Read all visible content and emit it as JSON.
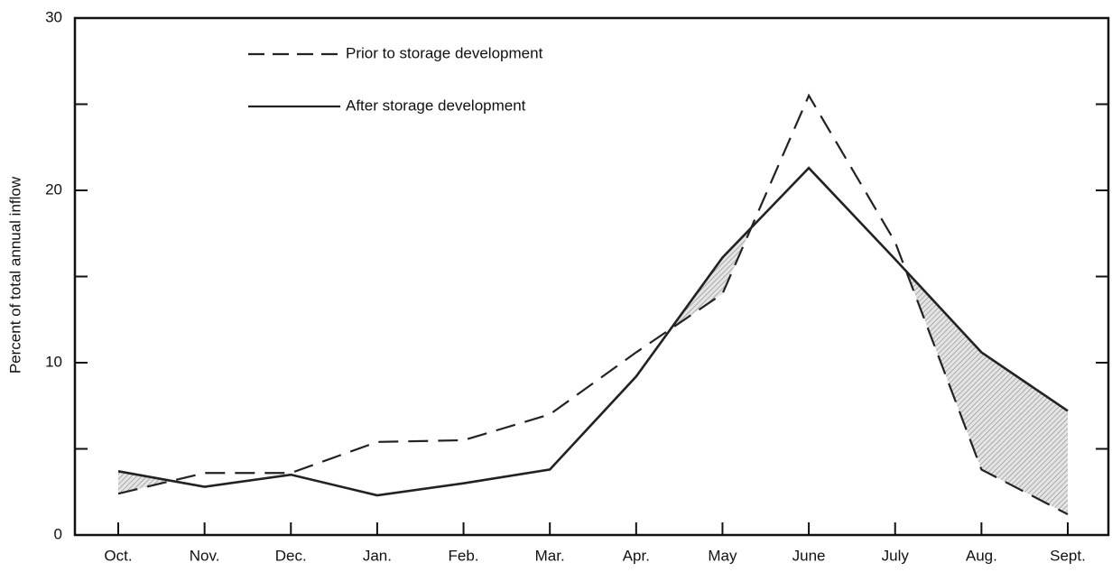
{
  "chart_data": {
    "type": "line",
    "y_label": "Percent of total annual inflow",
    "categories": [
      "Oct.",
      "Nov.",
      "Dec.",
      "Jan.",
      "Feb.",
      "Mar.",
      "Apr.",
      "May",
      "June",
      "July",
      "Aug.",
      "Sept."
    ],
    "series": [
      {
        "name": "Prior to storage development",
        "color": "#222222",
        "dash": "dashed",
        "values": [
          2.4,
          3.6,
          3.6,
          5.4,
          5.5,
          7.0,
          10.6,
          14.0,
          25.5,
          17.0,
          3.8,
          1.2
        ]
      },
      {
        "name": "After storage development",
        "color": "#222222",
        "dash": "solid",
        "values": [
          3.7,
          2.8,
          3.5,
          2.3,
          3.0,
          3.8,
          9.2,
          16.1,
          21.3,
          16.0,
          10.6,
          7.2
        ]
      }
    ],
    "ylim": [
      0,
      30
    ],
    "yticks": [
      0,
      10,
      20,
      30
    ],
    "yminor_ticks": [
      5,
      15,
      25
    ],
    "legend": "upper left",
    "grid": false
  }
}
